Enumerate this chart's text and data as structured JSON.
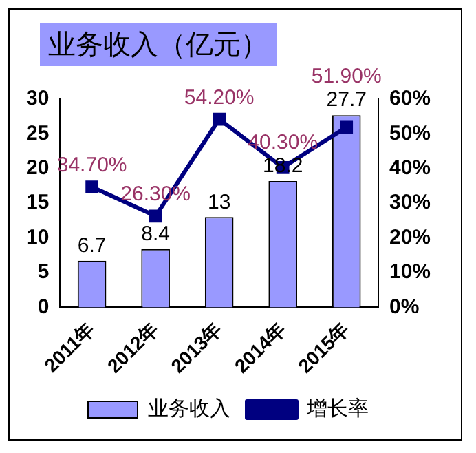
{
  "chart_data": {
    "type": "bar",
    "title": "业务收入（亿元）",
    "categories": [
      "2011年",
      "2012年",
      "2013年",
      "2014年",
      "2015年"
    ],
    "series": [
      {
        "name": "业务收入",
        "color": "#9999ff",
        "values": [
          6.7,
          8.4,
          13,
          18.2,
          27.7
        ],
        "value_labels": [
          "6.7",
          "8.4",
          "13",
          "18.2",
          "27.7"
        ]
      },
      {
        "name": "增长率",
        "type": "line",
        "axis": "y2",
        "color": "#000080",
        "values": [
          34.7,
          26.3,
          54.2,
          40.3,
          51.9
        ],
        "value_labels": [
          "34.70%",
          "26.30%",
          "54.20%",
          "40.30%",
          "51.90%"
        ]
      }
    ],
    "ylim": [
      0,
      30
    ],
    "yticks": [
      0,
      5,
      10,
      15,
      20,
      25,
      30
    ],
    "y2lim": [
      0,
      60
    ],
    "y2ticks": [
      {
        "value": 0,
        "label": "0%"
      },
      {
        "value": 10,
        "label": "10%"
      },
      {
        "value": 20,
        "label": "20%"
      },
      {
        "value": 30,
        "label": "30%"
      },
      {
        "value": 40,
        "label": "40%"
      },
      {
        "value": 50,
        "label": "50%"
      },
      {
        "value": 60,
        "label": "60%"
      }
    ],
    "legend": "bottom",
    "marker": "square",
    "grid": false
  }
}
